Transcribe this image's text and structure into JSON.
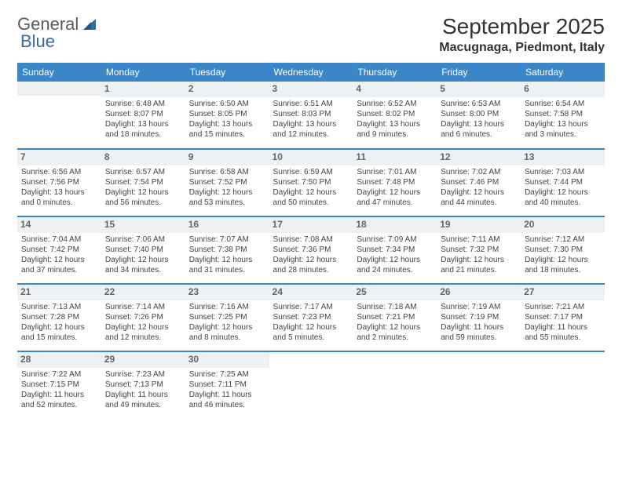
{
  "logo": {
    "text1": "General",
    "text2": "Blue"
  },
  "title": "September 2025",
  "location": "Macugnaga, Piedmont, Italy",
  "colors": {
    "header_bg": "#3b86c6",
    "header_text": "#ffffff",
    "daynum_bg": "#eef1f3",
    "daynum_text": "#666666",
    "body_text": "#444444",
    "logo_gray": "#5a5a5a",
    "logo_blue": "#2f6fa8"
  },
  "weekdays": [
    "Sunday",
    "Monday",
    "Tuesday",
    "Wednesday",
    "Thursday",
    "Friday",
    "Saturday"
  ],
  "weeks": [
    [
      null,
      {
        "n": "1",
        "sr": "Sunrise: 6:48 AM",
        "ss": "Sunset: 8:07 PM",
        "dl": "Daylight: 13 hours and 18 minutes."
      },
      {
        "n": "2",
        "sr": "Sunrise: 6:50 AM",
        "ss": "Sunset: 8:05 PM",
        "dl": "Daylight: 13 hours and 15 minutes."
      },
      {
        "n": "3",
        "sr": "Sunrise: 6:51 AM",
        "ss": "Sunset: 8:03 PM",
        "dl": "Daylight: 13 hours and 12 minutes."
      },
      {
        "n": "4",
        "sr": "Sunrise: 6:52 AM",
        "ss": "Sunset: 8:02 PM",
        "dl": "Daylight: 13 hours and 9 minutes."
      },
      {
        "n": "5",
        "sr": "Sunrise: 6:53 AM",
        "ss": "Sunset: 8:00 PM",
        "dl": "Daylight: 13 hours and 6 minutes."
      },
      {
        "n": "6",
        "sr": "Sunrise: 6:54 AM",
        "ss": "Sunset: 7:58 PM",
        "dl": "Daylight: 13 hours and 3 minutes."
      }
    ],
    [
      {
        "n": "7",
        "sr": "Sunrise: 6:56 AM",
        "ss": "Sunset: 7:56 PM",
        "dl": "Daylight: 13 hours and 0 minutes."
      },
      {
        "n": "8",
        "sr": "Sunrise: 6:57 AM",
        "ss": "Sunset: 7:54 PM",
        "dl": "Daylight: 12 hours and 56 minutes."
      },
      {
        "n": "9",
        "sr": "Sunrise: 6:58 AM",
        "ss": "Sunset: 7:52 PM",
        "dl": "Daylight: 12 hours and 53 minutes."
      },
      {
        "n": "10",
        "sr": "Sunrise: 6:59 AM",
        "ss": "Sunset: 7:50 PM",
        "dl": "Daylight: 12 hours and 50 minutes."
      },
      {
        "n": "11",
        "sr": "Sunrise: 7:01 AM",
        "ss": "Sunset: 7:48 PM",
        "dl": "Daylight: 12 hours and 47 minutes."
      },
      {
        "n": "12",
        "sr": "Sunrise: 7:02 AM",
        "ss": "Sunset: 7:46 PM",
        "dl": "Daylight: 12 hours and 44 minutes."
      },
      {
        "n": "13",
        "sr": "Sunrise: 7:03 AM",
        "ss": "Sunset: 7:44 PM",
        "dl": "Daylight: 12 hours and 40 minutes."
      }
    ],
    [
      {
        "n": "14",
        "sr": "Sunrise: 7:04 AM",
        "ss": "Sunset: 7:42 PM",
        "dl": "Daylight: 12 hours and 37 minutes."
      },
      {
        "n": "15",
        "sr": "Sunrise: 7:06 AM",
        "ss": "Sunset: 7:40 PM",
        "dl": "Daylight: 12 hours and 34 minutes."
      },
      {
        "n": "16",
        "sr": "Sunrise: 7:07 AM",
        "ss": "Sunset: 7:38 PM",
        "dl": "Daylight: 12 hours and 31 minutes."
      },
      {
        "n": "17",
        "sr": "Sunrise: 7:08 AM",
        "ss": "Sunset: 7:36 PM",
        "dl": "Daylight: 12 hours and 28 minutes."
      },
      {
        "n": "18",
        "sr": "Sunrise: 7:09 AM",
        "ss": "Sunset: 7:34 PM",
        "dl": "Daylight: 12 hours and 24 minutes."
      },
      {
        "n": "19",
        "sr": "Sunrise: 7:11 AM",
        "ss": "Sunset: 7:32 PM",
        "dl": "Daylight: 12 hours and 21 minutes."
      },
      {
        "n": "20",
        "sr": "Sunrise: 7:12 AM",
        "ss": "Sunset: 7:30 PM",
        "dl": "Daylight: 12 hours and 18 minutes."
      }
    ],
    [
      {
        "n": "21",
        "sr": "Sunrise: 7:13 AM",
        "ss": "Sunset: 7:28 PM",
        "dl": "Daylight: 12 hours and 15 minutes."
      },
      {
        "n": "22",
        "sr": "Sunrise: 7:14 AM",
        "ss": "Sunset: 7:26 PM",
        "dl": "Daylight: 12 hours and 12 minutes."
      },
      {
        "n": "23",
        "sr": "Sunrise: 7:16 AM",
        "ss": "Sunset: 7:25 PM",
        "dl": "Daylight: 12 hours and 8 minutes."
      },
      {
        "n": "24",
        "sr": "Sunrise: 7:17 AM",
        "ss": "Sunset: 7:23 PM",
        "dl": "Daylight: 12 hours and 5 minutes."
      },
      {
        "n": "25",
        "sr": "Sunrise: 7:18 AM",
        "ss": "Sunset: 7:21 PM",
        "dl": "Daylight: 12 hours and 2 minutes."
      },
      {
        "n": "26",
        "sr": "Sunrise: 7:19 AM",
        "ss": "Sunset: 7:19 PM",
        "dl": "Daylight: 11 hours and 59 minutes."
      },
      {
        "n": "27",
        "sr": "Sunrise: 7:21 AM",
        "ss": "Sunset: 7:17 PM",
        "dl": "Daylight: 11 hours and 55 minutes."
      }
    ],
    [
      {
        "n": "28",
        "sr": "Sunrise: 7:22 AM",
        "ss": "Sunset: 7:15 PM",
        "dl": "Daylight: 11 hours and 52 minutes."
      },
      {
        "n": "29",
        "sr": "Sunrise: 7:23 AM",
        "ss": "Sunset: 7:13 PM",
        "dl": "Daylight: 11 hours and 49 minutes."
      },
      {
        "n": "30",
        "sr": "Sunrise: 7:25 AM",
        "ss": "Sunset: 7:11 PM",
        "dl": "Daylight: 11 hours and 46 minutes."
      },
      null,
      null,
      null,
      null
    ]
  ]
}
